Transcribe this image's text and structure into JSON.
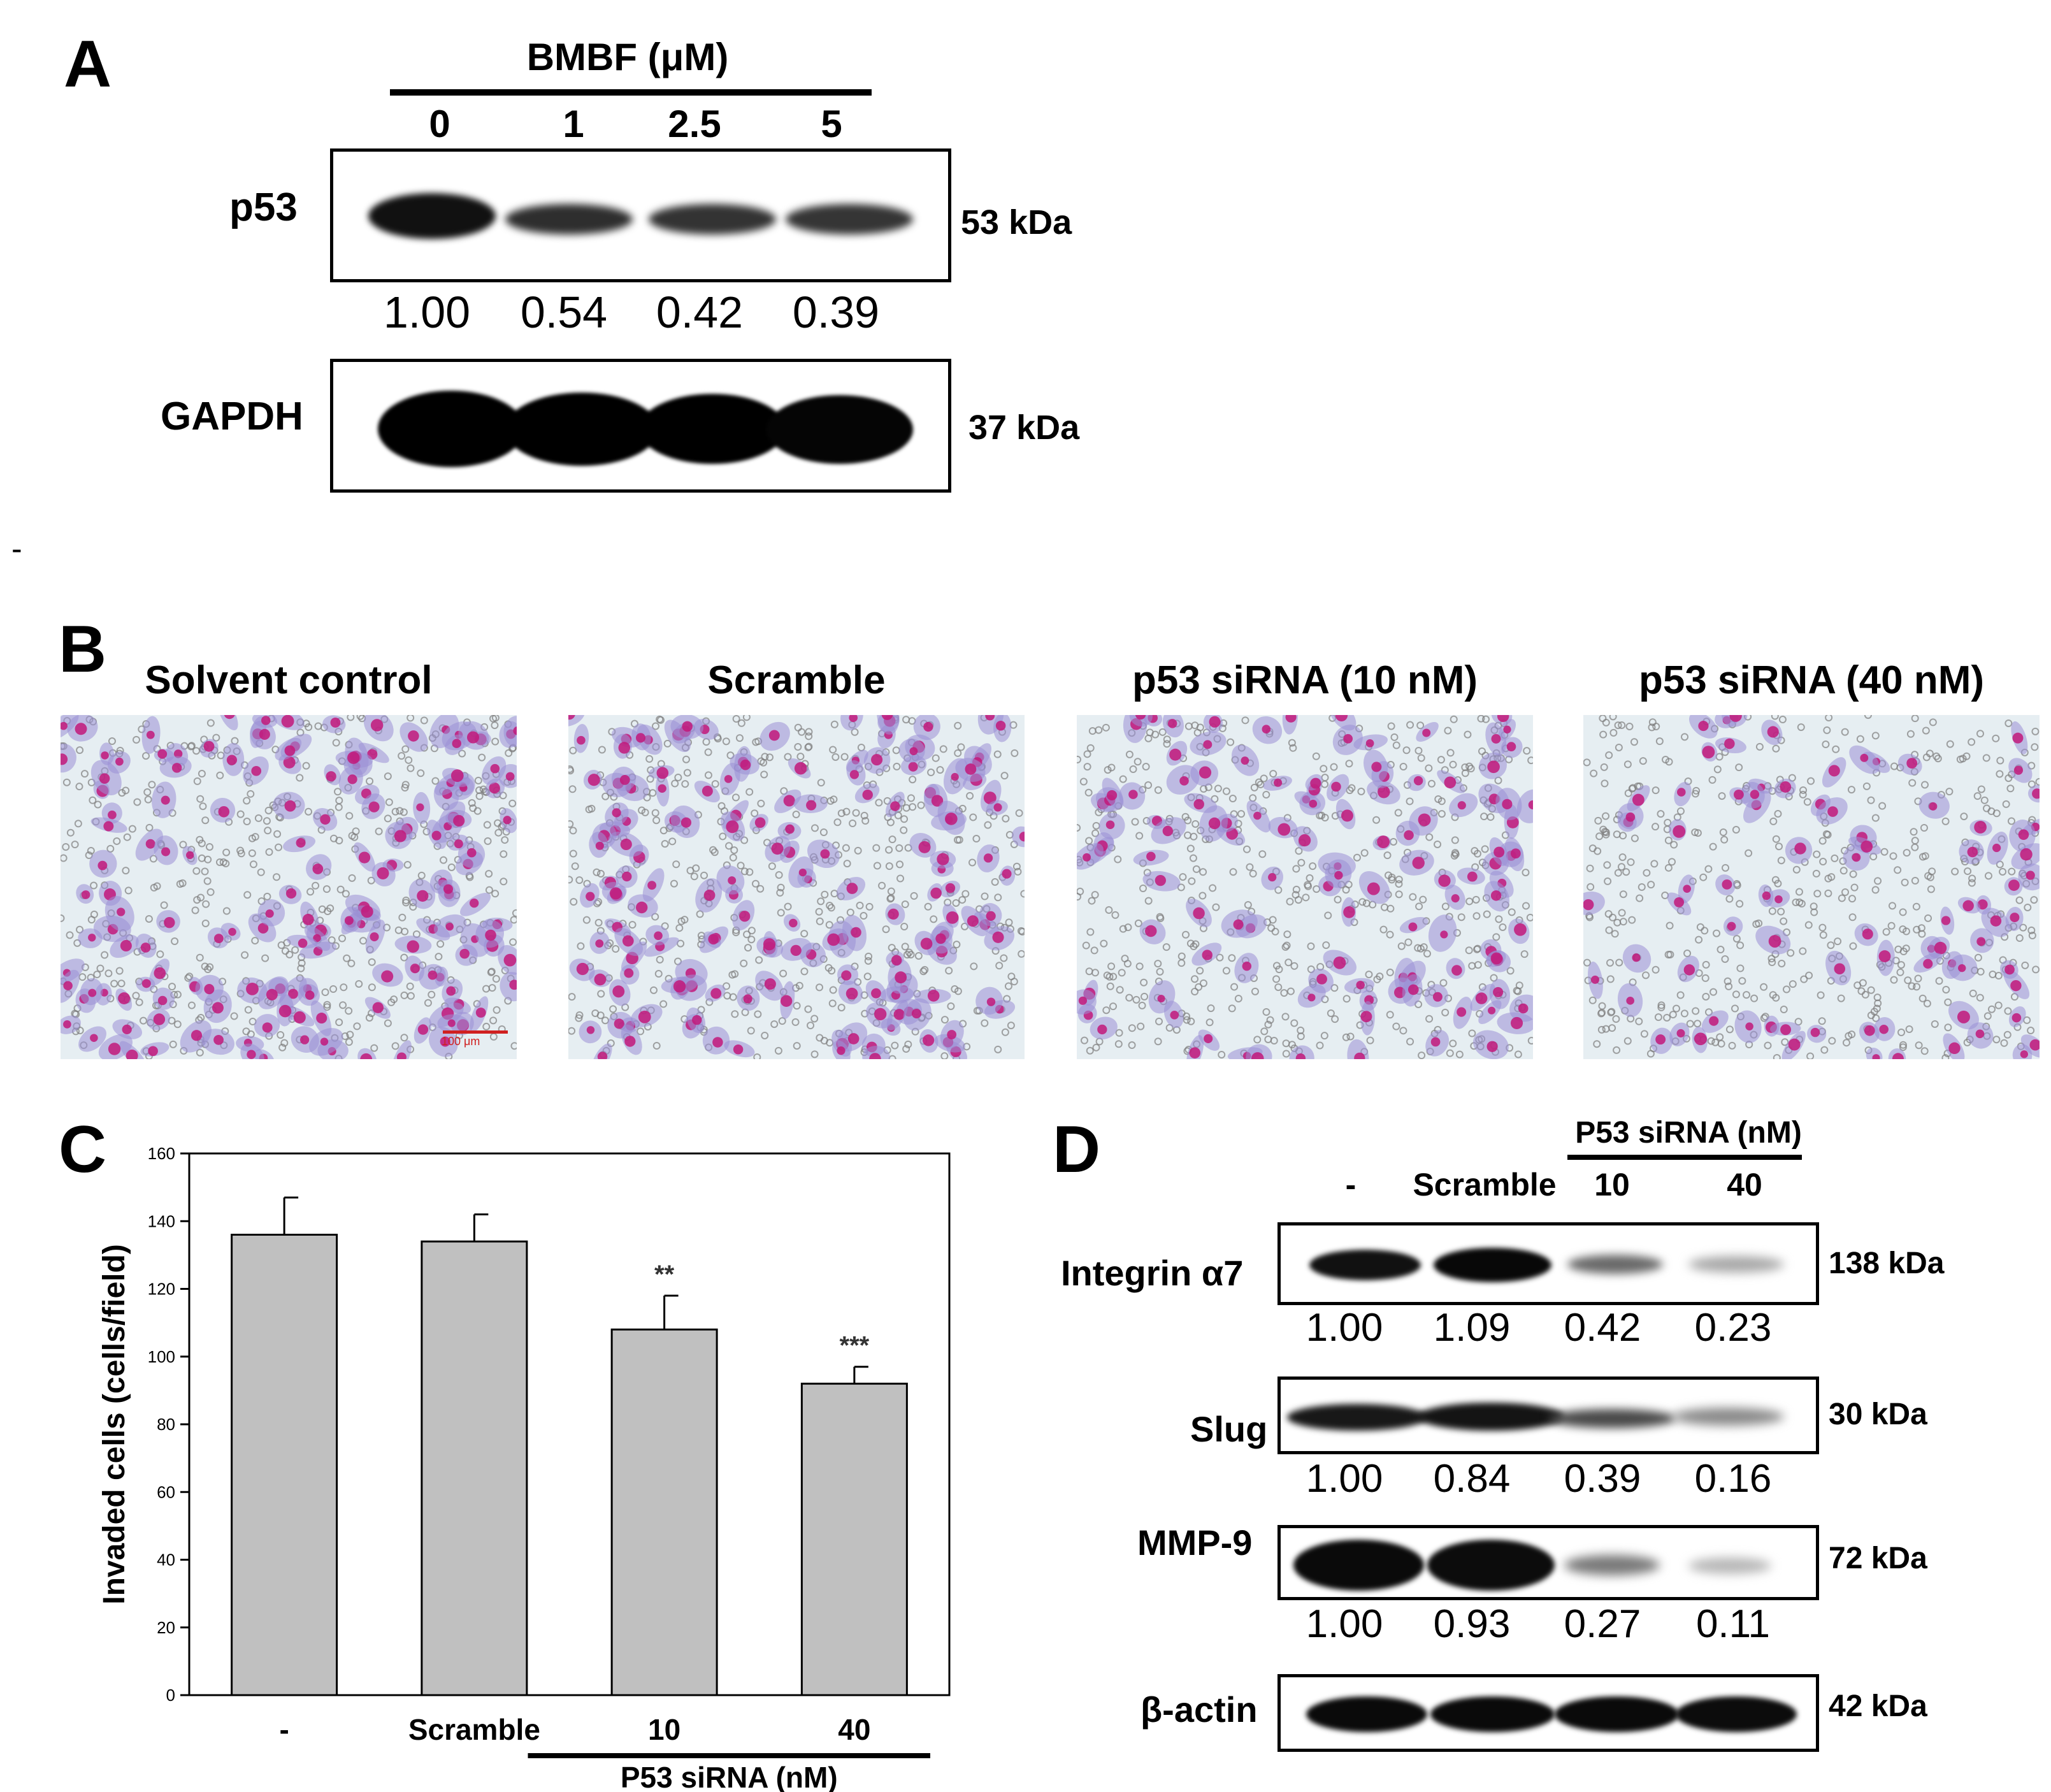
{
  "panel_a": {
    "label": "A",
    "treatment_title": "BMBF (μM)",
    "lanes": [
      "0",
      "1",
      "2.5",
      "5"
    ],
    "blots": [
      {
        "name": "p53",
        "kda": "53 kDa",
        "intensity": [
          1.0,
          0.54,
          0.42,
          0.39
        ]
      },
      {
        "name": "GAPDH",
        "kda": "37 kDa"
      }
    ],
    "quant": [
      "1.00",
      "0.54",
      "0.42",
      "0.39"
    ]
  },
  "stray_mark": "-",
  "panel_b": {
    "label": "B",
    "conditions": [
      "Solvent control",
      "Scramble",
      "p53 siRNA (10 nM)",
      "p53 siRNA (40 nM)"
    ],
    "scale_bar": "100 μm",
    "colors": {
      "background": "#e6eef2",
      "cytoplasm": "#9a8fd6",
      "nucleus": "#c2187a"
    }
  },
  "panel_c": {
    "label": "C",
    "group_label": "P53 siRNA (nM)",
    "chart_data": {
      "type": "bar",
      "categories": [
        "-",
        "Scramble",
        "10",
        "40"
      ],
      "values": [
        136,
        134,
        108,
        92
      ],
      "errors": [
        11,
        8,
        10,
        5
      ],
      "significance": [
        "",
        "",
        "**",
        "***"
      ],
      "ylabel": "Invaded cells (cells/field)",
      "ylim": [
        0,
        160
      ],
      "yticks": [
        "0",
        "20",
        "40",
        "60",
        "80",
        "100",
        "120",
        "140",
        "160"
      ],
      "bar_color": "#c0c0c0",
      "grid": false
    }
  },
  "panel_d": {
    "label": "D",
    "group_label": "P53 siRNA (nM)",
    "lanes": [
      "-",
      "Scramble",
      "10",
      "40"
    ],
    "blots": [
      {
        "name": "Integrin α7",
        "kda": "138 kDa",
        "quant": [
          "1.00",
          "1.09",
          "0.42",
          "0.23"
        ]
      },
      {
        "name": "Slug",
        "kda": "30 kDa",
        "quant": [
          "1.00",
          "0.84",
          "0.39",
          "0.16"
        ]
      },
      {
        "name": "MMP-9",
        "kda": "72 kDa",
        "quant": [
          "1.00",
          "0.93",
          "0.27",
          "0.11"
        ]
      },
      {
        "name": "β-actin",
        "kda": "42 kDa"
      }
    ]
  }
}
